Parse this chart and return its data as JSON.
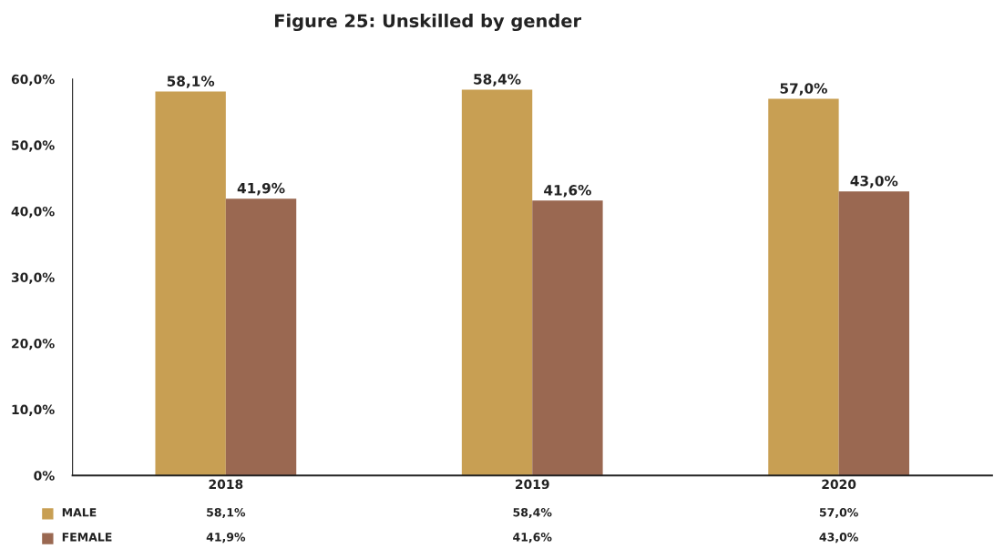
{
  "chart_data": {
    "type": "bar",
    "title": "Figure 25: Unskilled by gender",
    "categories": [
      "2018",
      "2019",
      "2020"
    ],
    "series": [
      {
        "name": "MALE",
        "color": "#c89f53",
        "values": [
          58.1,
          58.4,
          57.0
        ],
        "value_labels": [
          "58,1%",
          "58,4%",
          "57,0%"
        ]
      },
      {
        "name": "FEMALE",
        "color": "#9a6851",
        "values": [
          41.9,
          41.6,
          43.0
        ],
        "value_labels": [
          "41,9%",
          "41,6%",
          "43,0%"
        ]
      }
    ],
    "ylim": [
      0,
      60
    ],
    "yticks": [
      {
        "value": 0,
        "label": "0%"
      },
      {
        "value": 10,
        "label": "10,0%"
      },
      {
        "value": 20,
        "label": "20,0%"
      },
      {
        "value": 30,
        "label": "30,0%"
      },
      {
        "value": 40,
        "label": "40,0%"
      },
      {
        "value": 50,
        "label": "50,0%"
      },
      {
        "value": 60,
        "label": "60,0%"
      }
    ],
    "grid": false,
    "legend": "bottom"
  }
}
